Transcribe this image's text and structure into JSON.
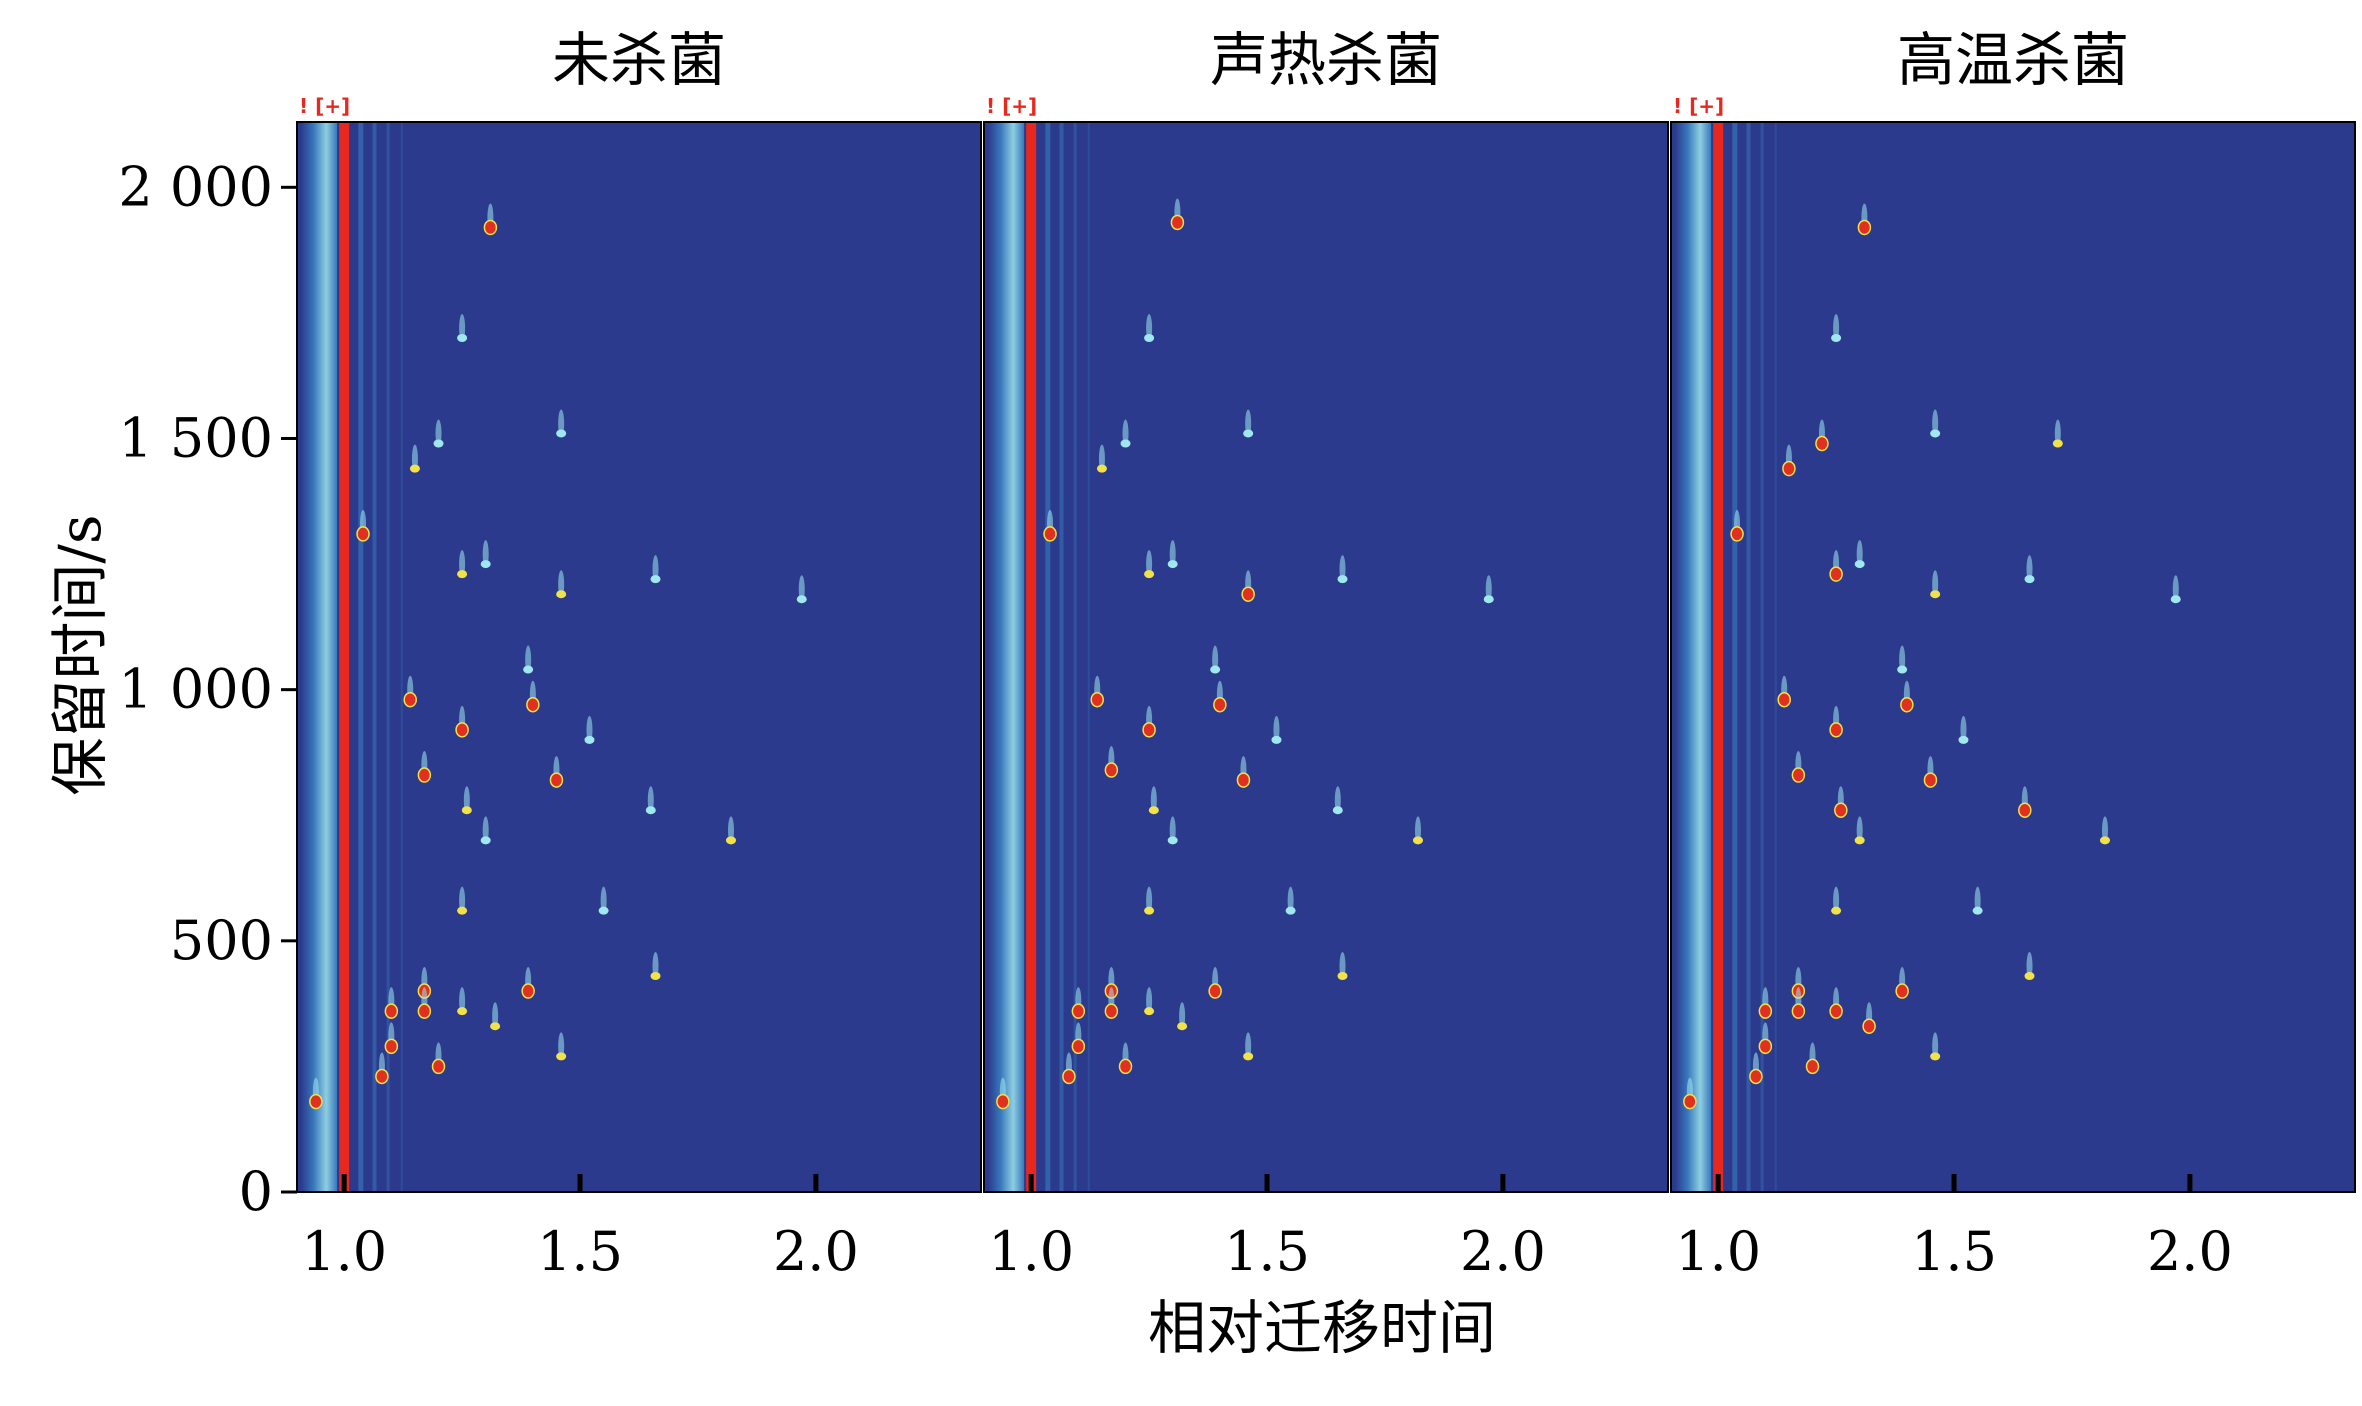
{
  "chart_data": {
    "type": "heatmap",
    "description_units": {
      "x": "relative drift time",
      "y": "retention time (s)"
    },
    "xlabel": "相对迁移时间",
    "ylabel": "保留时间/s",
    "xlim": [
      0.9,
      2.35
    ],
    "ylim": [
      0,
      2130
    ],
    "x_ticks": [
      1.0,
      1.5,
      2.0
    ],
    "x_tick_labels": [
      "1.0",
      "1.5",
      "2.0"
    ],
    "y_ticks": [
      0,
      500,
      1000,
      1500,
      2000
    ],
    "y_tick_labels": [
      "0",
      "500",
      "1 000",
      "1 500",
      "2 000"
    ],
    "panel_marker": "! [+]",
    "colors": {
      "background": "#2b3a8c",
      "rip_line": "#e8281e",
      "low": "#3b82c4",
      "mid": "#9fe8f0",
      "high_yellow": "#f2e24a",
      "peak_red": "#e03020"
    },
    "panels": [
      {
        "title": "未杀菌",
        "peaks": [
          {
            "x": 1.31,
            "y": 1920,
            "i": 3
          },
          {
            "x": 1.15,
            "y": 1440,
            "i": 2
          },
          {
            "x": 1.25,
            "y": 1700,
            "i": 1
          },
          {
            "x": 1.04,
            "y": 1310,
            "i": 3
          },
          {
            "x": 1.2,
            "y": 1490,
            "i": 1
          },
          {
            "x": 1.46,
            "y": 1510,
            "i": 1
          },
          {
            "x": 1.25,
            "y": 1230,
            "i": 2
          },
          {
            "x": 1.3,
            "y": 1250,
            "i": 1
          },
          {
            "x": 1.46,
            "y": 1190,
            "i": 2
          },
          {
            "x": 1.66,
            "y": 1220,
            "i": 1
          },
          {
            "x": 1.97,
            "y": 1180,
            "i": 1
          },
          {
            "x": 1.39,
            "y": 1040,
            "i": 1
          },
          {
            "x": 1.14,
            "y": 980,
            "i": 3
          },
          {
            "x": 1.25,
            "y": 920,
            "i": 3
          },
          {
            "x": 1.4,
            "y": 970,
            "i": 3
          },
          {
            "x": 1.52,
            "y": 900,
            "i": 1
          },
          {
            "x": 1.17,
            "y": 830,
            "i": 3
          },
          {
            "x": 1.45,
            "y": 820,
            "i": 3
          },
          {
            "x": 1.26,
            "y": 760,
            "i": 2
          },
          {
            "x": 1.3,
            "y": 700,
            "i": 1
          },
          {
            "x": 1.65,
            "y": 760,
            "i": 1
          },
          {
            "x": 1.82,
            "y": 700,
            "i": 2
          },
          {
            "x": 1.25,
            "y": 560,
            "i": 2
          },
          {
            "x": 1.55,
            "y": 560,
            "i": 1
          },
          {
            "x": 1.17,
            "y": 400,
            "i": 3
          },
          {
            "x": 1.39,
            "y": 400,
            "i": 3
          },
          {
            "x": 1.66,
            "y": 430,
            "i": 2
          },
          {
            "x": 1.1,
            "y": 360,
            "i": 3
          },
          {
            "x": 1.17,
            "y": 360,
            "i": 3
          },
          {
            "x": 1.25,
            "y": 360,
            "i": 2
          },
          {
            "x": 1.32,
            "y": 330,
            "i": 2
          },
          {
            "x": 1.46,
            "y": 270,
            "i": 2
          },
          {
            "x": 1.1,
            "y": 290,
            "i": 3
          },
          {
            "x": 1.2,
            "y": 250,
            "i": 3
          },
          {
            "x": 0.94,
            "y": 180,
            "i": 3
          },
          {
            "x": 1.08,
            "y": 230,
            "i": 3
          }
        ]
      },
      {
        "title": "声热杀菌",
        "peaks": [
          {
            "x": 1.31,
            "y": 1930,
            "i": 3
          },
          {
            "x": 1.15,
            "y": 1440,
            "i": 2
          },
          {
            "x": 1.25,
            "y": 1700,
            "i": 1
          },
          {
            "x": 1.04,
            "y": 1310,
            "i": 3
          },
          {
            "x": 1.2,
            "y": 1490,
            "i": 1
          },
          {
            "x": 1.46,
            "y": 1510,
            "i": 1
          },
          {
            "x": 1.25,
            "y": 1230,
            "i": 2
          },
          {
            "x": 1.3,
            "y": 1250,
            "i": 1
          },
          {
            "x": 1.46,
            "y": 1190,
            "i": 3
          },
          {
            "x": 1.66,
            "y": 1220,
            "i": 1
          },
          {
            "x": 1.97,
            "y": 1180,
            "i": 1
          },
          {
            "x": 1.39,
            "y": 1040,
            "i": 1
          },
          {
            "x": 1.14,
            "y": 980,
            "i": 3
          },
          {
            "x": 1.25,
            "y": 920,
            "i": 3
          },
          {
            "x": 1.4,
            "y": 970,
            "i": 3
          },
          {
            "x": 1.52,
            "y": 900,
            "i": 1
          },
          {
            "x": 1.17,
            "y": 840,
            "i": 3
          },
          {
            "x": 1.45,
            "y": 820,
            "i": 3
          },
          {
            "x": 1.26,
            "y": 760,
            "i": 2
          },
          {
            "x": 1.3,
            "y": 700,
            "i": 1
          },
          {
            "x": 1.65,
            "y": 760,
            "i": 1
          },
          {
            "x": 1.82,
            "y": 700,
            "i": 2
          },
          {
            "x": 1.25,
            "y": 560,
            "i": 2
          },
          {
            "x": 1.55,
            "y": 560,
            "i": 1
          },
          {
            "x": 1.17,
            "y": 400,
            "i": 3
          },
          {
            "x": 1.39,
            "y": 400,
            "i": 3
          },
          {
            "x": 1.66,
            "y": 430,
            "i": 2
          },
          {
            "x": 1.1,
            "y": 360,
            "i": 3
          },
          {
            "x": 1.17,
            "y": 360,
            "i": 3
          },
          {
            "x": 1.25,
            "y": 360,
            "i": 2
          },
          {
            "x": 1.32,
            "y": 330,
            "i": 2
          },
          {
            "x": 1.46,
            "y": 270,
            "i": 2
          },
          {
            "x": 1.1,
            "y": 290,
            "i": 3
          },
          {
            "x": 1.2,
            "y": 250,
            "i": 3
          },
          {
            "x": 0.94,
            "y": 180,
            "i": 3
          },
          {
            "x": 1.08,
            "y": 230,
            "i": 3
          }
        ]
      },
      {
        "title": "高温杀菌",
        "peaks": [
          {
            "x": 1.31,
            "y": 1920,
            "i": 3
          },
          {
            "x": 1.22,
            "y": 1490,
            "i": 3
          },
          {
            "x": 1.15,
            "y": 1440,
            "i": 3
          },
          {
            "x": 1.25,
            "y": 1700,
            "i": 1
          },
          {
            "x": 1.04,
            "y": 1310,
            "i": 3
          },
          {
            "x": 1.72,
            "y": 1490,
            "i": 2
          },
          {
            "x": 1.46,
            "y": 1510,
            "i": 1
          },
          {
            "x": 1.25,
            "y": 1230,
            "i": 3
          },
          {
            "x": 1.3,
            "y": 1250,
            "i": 1
          },
          {
            "x": 1.46,
            "y": 1190,
            "i": 2
          },
          {
            "x": 1.66,
            "y": 1220,
            "i": 1
          },
          {
            "x": 1.97,
            "y": 1180,
            "i": 1
          },
          {
            "x": 1.39,
            "y": 1040,
            "i": 1
          },
          {
            "x": 1.14,
            "y": 980,
            "i": 3
          },
          {
            "x": 1.25,
            "y": 920,
            "i": 3
          },
          {
            "x": 1.4,
            "y": 970,
            "i": 3
          },
          {
            "x": 1.52,
            "y": 900,
            "i": 1
          },
          {
            "x": 1.17,
            "y": 830,
            "i": 3
          },
          {
            "x": 1.45,
            "y": 820,
            "i": 3
          },
          {
            "x": 1.26,
            "y": 760,
            "i": 3
          },
          {
            "x": 1.3,
            "y": 700,
            "i": 2
          },
          {
            "x": 1.65,
            "y": 760,
            "i": 3
          },
          {
            "x": 1.82,
            "y": 700,
            "i": 2
          },
          {
            "x": 1.25,
            "y": 560,
            "i": 2
          },
          {
            "x": 1.55,
            "y": 560,
            "i": 1
          },
          {
            "x": 1.17,
            "y": 400,
            "i": 3
          },
          {
            "x": 1.39,
            "y": 400,
            "i": 3
          },
          {
            "x": 1.66,
            "y": 430,
            "i": 2
          },
          {
            "x": 1.1,
            "y": 360,
            "i": 3
          },
          {
            "x": 1.17,
            "y": 360,
            "i": 3
          },
          {
            "x": 1.25,
            "y": 360,
            "i": 3
          },
          {
            "x": 1.32,
            "y": 330,
            "i": 3
          },
          {
            "x": 1.46,
            "y": 270,
            "i": 2
          },
          {
            "x": 1.1,
            "y": 290,
            "i": 3
          },
          {
            "x": 1.2,
            "y": 250,
            "i": 3
          },
          {
            "x": 0.94,
            "y": 180,
            "i": 3
          },
          {
            "x": 1.08,
            "y": 230,
            "i": 3
          }
        ]
      }
    ]
  }
}
